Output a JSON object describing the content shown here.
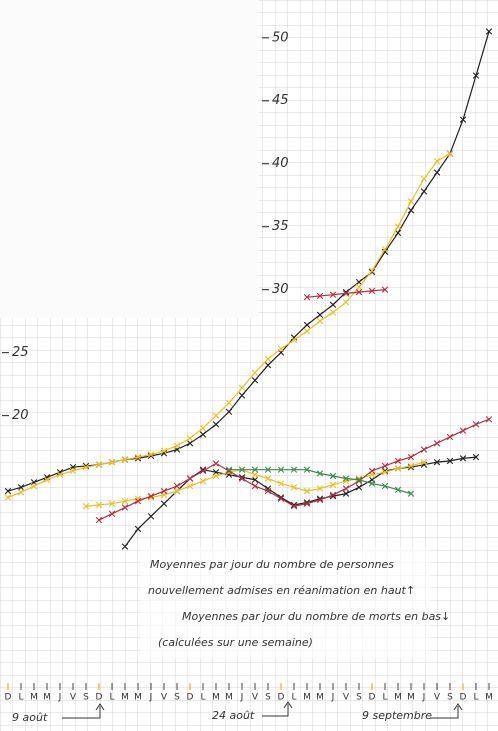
{
  "chart_data": {
    "type": "line",
    "categories": [
      "D",
      "L",
      "M",
      "M",
      "J",
      "V",
      "S",
      "D",
      "L",
      "M",
      "M",
      "J",
      "V",
      "S",
      "D",
      "L",
      "M",
      "M",
      "J",
      "V",
      "S",
      "D",
      "L",
      "M",
      "M",
      "J",
      "V",
      "S",
      "D",
      "L",
      "M",
      "M",
      "J",
      "V",
      "S",
      "D",
      "L",
      "M"
    ],
    "ylim": [
      -1,
      53
    ],
    "yticks": [
      20,
      25,
      30,
      35,
      40,
      45,
      50
    ],
    "series": [
      {
        "color": "#222222",
        "values": [
          14,
          14.3,
          14.7,
          15.1,
          15.5,
          15.9,
          16.0,
          16.1,
          16.3,
          16.5,
          16.6,
          16.8,
          17.0,
          17.3,
          17.8,
          18.5,
          19.3,
          20.3,
          21.6,
          22.8,
          24.0,
          25.0,
          26.2,
          27.2,
          28.0,
          28.8,
          29.8,
          30.6,
          31.4,
          33.0,
          34.5,
          36.3,
          37.8,
          39.3,
          40.8,
          43.5,
          47.0,
          50.5
        ]
      },
      {
        "color": "#e8c020",
        "values": [
          13.5,
          13.9,
          14.4,
          14.9,
          15.3,
          15.6,
          15.9,
          16.1,
          16.3,
          16.5,
          16.7,
          16.9,
          17.2,
          17.6,
          18.2,
          19.0,
          20.0,
          21.0,
          22.2,
          23.4,
          24.5,
          25.3,
          26.0,
          26.7,
          27.5,
          28.2,
          29.0,
          30.2,
          31.5,
          33.2,
          35.0,
          37.0,
          38.8,
          40.2,
          40.8,
          null,
          null,
          null
        ]
      },
      {
        "color": "#b03040",
        "values": [
          null,
          null,
          null,
          null,
          null,
          null,
          null,
          null,
          null,
          null,
          null,
          null,
          null,
          null,
          null,
          null,
          null,
          null,
          null,
          null,
          null,
          null,
          null,
          29.4,
          29.5,
          29.6,
          29.7,
          29.8,
          29.9,
          30.0,
          null,
          null,
          null,
          null,
          null,
          null,
          null,
          null
        ]
      },
      {
        "color": "#222222",
        "values": [
          null,
          null,
          null,
          null,
          null,
          null,
          null,
          null,
          null,
          9.6,
          11.0,
          12.0,
          13.0,
          14.0,
          15.0,
          15.7,
          15.5,
          15.3,
          15.1,
          14.9,
          14.2,
          13.5,
          12.9,
          13.1,
          13.4,
          13.6,
          13.8,
          14.3,
          14.9,
          15.6,
          15.8,
          15.9,
          16.1,
          16.3,
          16.4,
          16.6,
          16.7,
          null
        ]
      },
      {
        "color": "#e8c020",
        "values": [
          null,
          null,
          null,
          null,
          null,
          null,
          12.8,
          12.9,
          13.0,
          13.2,
          13.4,
          13.5,
          13.7,
          14.0,
          14.4,
          14.8,
          15.2,
          15.5,
          15.7,
          15.3,
          15.0,
          14.6,
          14.3,
          14.0,
          14.2,
          14.5,
          14.8,
          15.0,
          15.3,
          15.5,
          15.8,
          16.0,
          16.3,
          null,
          null,
          null,
          null,
          null
        ]
      },
      {
        "color": "#b03040",
        "values": [
          null,
          null,
          null,
          null,
          null,
          null,
          null,
          11.7,
          12.2,
          12.7,
          13.2,
          13.6,
          14.0,
          14.4,
          15.0,
          15.6,
          16.2,
          15.6,
          15.0,
          14.4,
          14.0,
          13.4,
          12.8,
          13.0,
          13.3,
          13.7,
          14.2,
          14.8,
          15.6,
          16.0,
          16.4,
          16.7,
          17.3,
          17.8,
          18.3,
          18.8,
          19.3,
          19.7
        ]
      },
      {
        "color": "#3a8a50",
        "values": [
          null,
          null,
          null,
          null,
          null,
          null,
          null,
          null,
          null,
          null,
          null,
          null,
          null,
          null,
          null,
          null,
          null,
          15.7,
          15.7,
          15.7,
          15.7,
          15.7,
          15.7,
          15.7,
          15.4,
          15.2,
          15.0,
          14.9,
          14.6,
          14.4,
          14.1,
          13.8,
          null,
          null,
          null,
          null,
          null,
          null
        ]
      }
    ],
    "annotations": [
      "Moyennes par jour du nombre de personnes",
      "nouvellement admises en réanimation en haut↑",
      "Moyennes par jour du nombre de morts en bas↓",
      "(calculées sur une semaine)"
    ],
    "date_labels": [
      "9 août",
      "24 août",
      "9 septembre"
    ]
  }
}
